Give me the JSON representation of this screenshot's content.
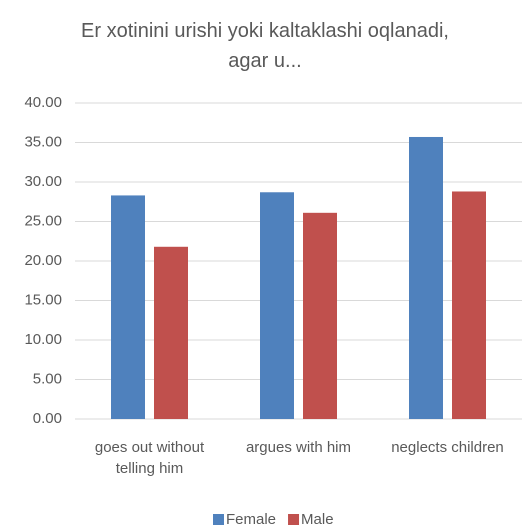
{
  "chart_data": {
    "type": "bar",
    "title": "Er xotinini urishi yoki kaltaklashi oqlanadi, agar u...",
    "categories": [
      "goes out without telling him",
      "argues with him",
      "neglects children"
    ],
    "series": [
      {
        "name": "Female",
        "color": "#4f81bd",
        "values": [
          28.3,
          28.7,
          35.7
        ]
      },
      {
        "name": "Male",
        "color": "#c0504d",
        "values": [
          21.8,
          26.1,
          28.8
        ]
      }
    ],
    "ylim": [
      0,
      40
    ],
    "yticks": [
      {
        "value": 0,
        "label": "0.00"
      },
      {
        "value": 5,
        "label": "5.00"
      },
      {
        "value": 10,
        "label": "10.00"
      },
      {
        "value": 15,
        "label": "15.00"
      },
      {
        "value": 20,
        "label": "20.00"
      },
      {
        "value": 25,
        "label": "25.00"
      },
      {
        "value": 30,
        "label": "30.00"
      },
      {
        "value": 35,
        "label": "35.00"
      },
      {
        "value": 40,
        "label": "40.00"
      }
    ],
    "grid": true,
    "legend": "bottom"
  }
}
